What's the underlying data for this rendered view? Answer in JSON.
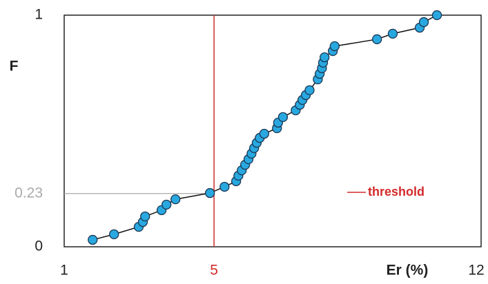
{
  "chart_data": {
    "type": "line",
    "x_label": "Er (%)",
    "y_label": "F",
    "xlim": [
      1,
      12
    ],
    "ylim": [
      0,
      1
    ],
    "xticks": [
      1,
      5,
      12
    ],
    "yticks": [
      0,
      0.23,
      1
    ],
    "threshold": {
      "value": 5,
      "label": "threshold",
      "color": "#d42a2a"
    },
    "guide_color": "#aaaaaa",
    "series": [
      {
        "color": "#29a8e0",
        "line_color": "#111111",
        "x": [
          1.76,
          2.33,
          2.99,
          3.1,
          3.16,
          3.6,
          3.73,
          3.97,
          4.89,
          5.28,
          5.59,
          5.65,
          5.74,
          5.83,
          5.92,
          6.0,
          6.07,
          6.14,
          6.22,
          6.34,
          6.68,
          6.71,
          6.84,
          7.18,
          7.29,
          7.36,
          7.45,
          7.55,
          7.77,
          7.82,
          7.88,
          7.91,
          7.95,
          8.17,
          8.22,
          9.35,
          9.77,
          10.49,
          10.6,
          10.95
        ],
        "values": [
          0.03,
          0.054,
          0.086,
          0.107,
          0.131,
          0.158,
          0.182,
          0.205,
          0.232,
          0.259,
          0.283,
          0.307,
          0.33,
          0.354,
          0.378,
          0.402,
          0.426,
          0.449,
          0.47,
          0.488,
          0.512,
          0.536,
          0.56,
          0.589,
          0.613,
          0.634,
          0.655,
          0.676,
          0.723,
          0.747,
          0.771,
          0.795,
          0.818,
          0.845,
          0.866,
          0.896,
          0.92,
          0.946,
          0.97,
          1.0
        ]
      }
    ]
  }
}
